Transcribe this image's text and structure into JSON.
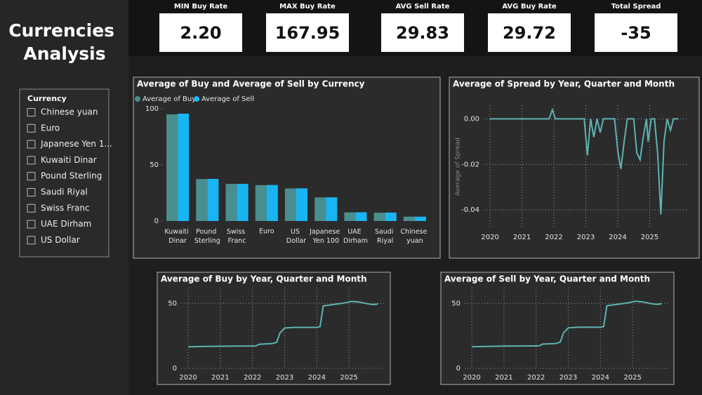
{
  "title": "Currencies Analysis",
  "kpis": [
    {
      "label": "MIN Buy Rate",
      "value": "2.20"
    },
    {
      "label": "MAX Buy Rate",
      "value": "167.95"
    },
    {
      "label": "AVG Sell Rate",
      "value": "29.83"
    },
    {
      "label": "AVG Buy Rate",
      "value": "29.72"
    },
    {
      "label": "Total Spread",
      "value": "-35"
    }
  ],
  "slicer": {
    "title": "Currency",
    "items": [
      "Chinese yuan",
      "Euro",
      "Japanese Yen 1...",
      "Kuwaiti Dinar",
      "Pound Sterling",
      "Saudi Riyal",
      "Swiss Franc",
      "UAE Dirham",
      "US Dollar"
    ]
  },
  "chart_data": [
    {
      "type": "bar",
      "title": "Average of Buy and Average of Sell by Currency",
      "categories": [
        "Kuwaiti Dinar",
        "Pound Sterling",
        "Swiss Franc",
        "Euro",
        "US Dollar",
        "Japanese Yen 100",
        "UAE Dirham",
        "Saudi Riyal",
        "Chinese yuan"
      ],
      "series": [
        {
          "name": "Average of Buy",
          "color": "#4a8f8f",
          "values": [
            95,
            37.4,
            33,
            32,
            29,
            21,
            7.7,
            7.4,
            3.9
          ]
        },
        {
          "name": "Average of Sell",
          "color": "#19b5f2",
          "values": [
            95.6,
            37.5,
            33.1,
            32.1,
            29.1,
            21.1,
            7.8,
            7.5,
            3.9
          ]
        }
      ],
      "ylim": [
        0,
        100
      ],
      "yticks": [
        0,
        50,
        100
      ],
      "grid": false,
      "legend": "top-left"
    },
    {
      "type": "line",
      "title": "Average of Spread by Year, Quarter and Month",
      "y_label": "Average of Spread",
      "x": [
        2020,
        2021.85,
        2021.95,
        2022.05,
        2022.95,
        2023.05,
        2023.15,
        2023.25,
        2023.35,
        2023.45,
        2023.55,
        2023.9,
        2024.0,
        2024.1,
        2024.2,
        2024.3,
        2024.5,
        2024.6,
        2024.7,
        2024.8,
        2024.9,
        2024.95,
        2025.05,
        2025.15,
        2025.25,
        2025.35,
        2025.45,
        2025.55,
        2025.65,
        2025.75,
        2025.9
      ],
      "values": [
        0,
        0,
        0.004,
        0,
        0,
        -0.016,
        0,
        -0.008,
        0,
        -0.006,
        0,
        0,
        -0.014,
        -0.022,
        -0.01,
        0,
        0,
        -0.015,
        -0.018,
        -0.008,
        0,
        -0.01,
        0,
        0,
        -0.015,
        -0.042,
        -0.01,
        0,
        -0.005,
        0,
        0
      ],
      "color": "#5fb3b3",
      "xlim": [
        2019.8,
        2026.2
      ],
      "xticks": [
        2020,
        2021,
        2022,
        2023,
        2024,
        2025
      ],
      "ylim": [
        -0.048,
        0.006
      ],
      "yticks": [
        {
          "value": 0,
          "label": "0.00"
        },
        {
          "value": -0.02,
          "label": "-0.02"
        },
        {
          "value": -0.04,
          "label": "-0.04"
        }
      ],
      "grid": true
    },
    {
      "type": "line",
      "title": "Average of Buy by Year, Quarter and Month",
      "x": [
        2020,
        2020.5,
        2021,
        2021.5,
        2022.1,
        2022.2,
        2022.6,
        2022.75,
        2022.85,
        2023.0,
        2023.3,
        2023.6,
        2024.0,
        2024.1,
        2024.2,
        2024.5,
        2024.8,
        2025.1,
        2025.3,
        2025.6,
        2025.75,
        2025.9
      ],
      "values": [
        16.5,
        16.8,
        17,
        17.1,
        17.2,
        18.5,
        19,
        20,
        27,
        31,
        31.5,
        31.5,
        31.5,
        32,
        48,
        49,
        50,
        51.5,
        51,
        49.5,
        49,
        49.5
      ],
      "color": "#5fb3b3",
      "xlim": [
        2019.78,
        2026.11
      ],
      "xticks": [
        2020,
        2021,
        2022,
        2023,
        2024,
        2025
      ],
      "ylim": [
        0,
        62
      ],
      "yticks": [
        0,
        50
      ],
      "grid": true
    },
    {
      "type": "line",
      "title": "Average of Sell by Year, Quarter and Month",
      "x": [
        2020,
        2020.5,
        2021,
        2021.5,
        2022.1,
        2022.2,
        2022.6,
        2022.75,
        2022.85,
        2023.0,
        2023.3,
        2023.6,
        2024.0,
        2024.1,
        2024.2,
        2024.5,
        2024.8,
        2025.1,
        2025.3,
        2025.6,
        2025.75,
        2025.9
      ],
      "values": [
        16.6,
        16.9,
        17.1,
        17.2,
        17.3,
        18.6,
        19.1,
        20.1,
        27.1,
        31.1,
        31.6,
        31.6,
        31.6,
        32.1,
        48.1,
        49.1,
        50.1,
        51.6,
        51.1,
        49.6,
        49.1,
        49.6
      ],
      "color": "#5fb3b3",
      "xlim": [
        2019.78,
        2026.11
      ],
      "xticks": [
        2020,
        2021,
        2022,
        2023,
        2024,
        2025
      ],
      "ylim": [
        0,
        62
      ],
      "yticks": [
        0,
        50
      ],
      "grid": true
    }
  ]
}
